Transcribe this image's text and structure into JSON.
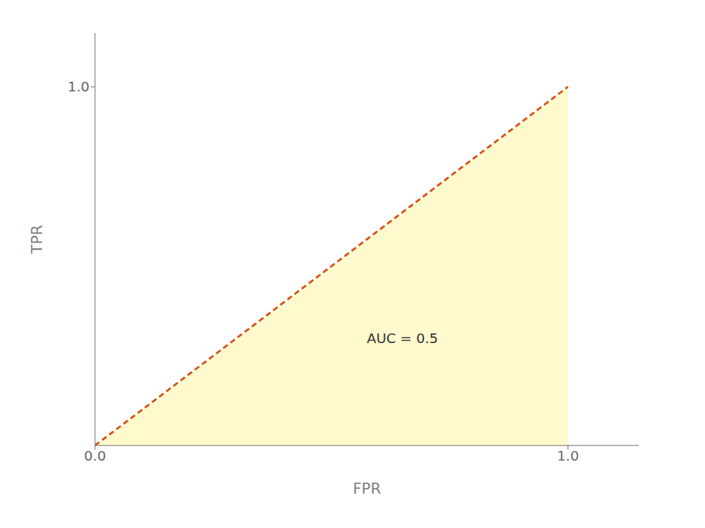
{
  "chart_data": {
    "type": "line",
    "x": [
      0.0,
      1.0
    ],
    "series": [
      {
        "type": "area",
        "color": "#FFFACD",
        "values": [
          0.0,
          1.0
        ]
      },
      {
        "type": "line",
        "color": "#D2521E",
        "line_style": "dashed",
        "values": [
          0.0,
          1.0
        ]
      }
    ],
    "xlabel": "FPR",
    "ylabel": "TPR",
    "xlim": [
      0.0,
      1.15
    ],
    "ylim": [
      0.0,
      1.15
    ],
    "xticks": [
      {
        "value": 0.0,
        "label": "0.0"
      },
      {
        "value": 1.0,
        "label": "1.0"
      }
    ],
    "yticks": [
      {
        "value": 1.0,
        "label": "1.0"
      }
    ],
    "annotations": [
      {
        "text": "AUC = 0.5",
        "x": 0.65,
        "y": 0.3
      }
    ],
    "grid": false
  }
}
